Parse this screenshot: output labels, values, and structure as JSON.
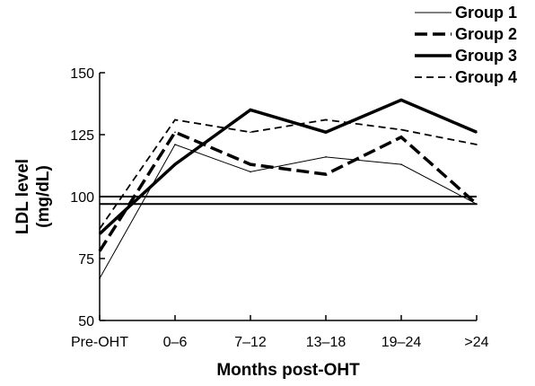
{
  "chart_data": {
    "type": "line",
    "xlabel": "Months post-OHT",
    "ylabel_line1": "LDL level",
    "ylabel_line2": "(mg/dL)",
    "categories": [
      "Pre-OHT",
      "0–6",
      "7–12",
      "13–18",
      "19–24",
      ">24"
    ],
    "ylim": [
      50,
      150
    ],
    "yticks": [
      50,
      75,
      100,
      125,
      150
    ],
    "grid": false,
    "legend_position": "top-right",
    "reference_lines": [
      100,
      97
    ],
    "series": [
      {
        "name": "Group 1",
        "style": "thin-solid",
        "values": [
          67,
          121,
          110,
          116,
          113,
          97
        ]
      },
      {
        "name": "Group 2",
        "style": "thick-dashed",
        "values": [
          78,
          126,
          113,
          109,
          124,
          97
        ]
      },
      {
        "name": "Group 3",
        "style": "thick-solid",
        "values": [
          85,
          113,
          135,
          126,
          139,
          126
        ]
      },
      {
        "name": "Group 4",
        "style": "thin-dashed",
        "values": [
          87,
          131,
          126,
          131,
          127,
          121
        ]
      }
    ]
  }
}
